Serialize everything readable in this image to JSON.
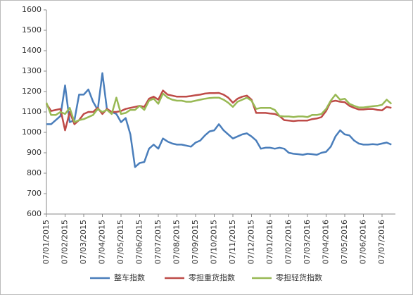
{
  "chart_data": {
    "type": "line",
    "categories": [
      "07/01/2015",
      null,
      null,
      null,
      "07/02/2015",
      null,
      null,
      null,
      "07/03/2015",
      null,
      null,
      null,
      "07/04/2015",
      null,
      null,
      null,
      "07/05/2015",
      null,
      null,
      null,
      "07/06/2015",
      null,
      null,
      null,
      "07/07/2015",
      null,
      null,
      null,
      "07/08/2015",
      null,
      null,
      null,
      "07/09/2015",
      null,
      null,
      null,
      "07/10/2015",
      null,
      null,
      null,
      "07/11/2015",
      null,
      null,
      null,
      "07/12/2015",
      null,
      null,
      null,
      "07/01/2016",
      null,
      null,
      null,
      "07/02/2016",
      null,
      null,
      null,
      "07/03/2016",
      null,
      null,
      null,
      "07/04/2016",
      null,
      null,
      null,
      "07/05/2016",
      null,
      null,
      null,
      "07/06/2016",
      null,
      null,
      null,
      "07/07/2016",
      null,
      null
    ],
    "series": [
      {
        "name": "整车指数",
        "color": "#4a7ebb",
        "values": [
          1040,
          1040,
          1060,
          1080,
          1230,
          1050,
          1060,
          1185,
          1185,
          1210,
          1150,
          1110,
          1290,
          1110,
          1100,
          1090,
          1050,
          1070,
          990,
          830,
          850,
          855,
          920,
          940,
          920,
          970,
          955,
          945,
          940,
          940,
          935,
          930,
          950,
          960,
          985,
          1005,
          1010,
          1040,
          1010,
          990,
          970,
          980,
          990,
          995,
          980,
          960,
          920,
          925,
          925,
          920,
          925,
          920,
          900,
          895,
          893,
          890,
          895,
          893,
          890,
          900,
          905,
          930,
          980,
          1010,
          990,
          985,
          960,
          945,
          940,
          940,
          942,
          940,
          945,
          950,
          940
        ]
      },
      {
        "name": "零担重货指数",
        "color": "#be4b48",
        "values": [
          1140,
          1105,
          1110,
          1115,
          1010,
          1100,
          1040,
          1060,
          1090,
          1100,
          1100,
          1120,
          1090,
          1115,
          1100,
          1100,
          1105,
          1115,
          1120,
          1125,
          1130,
          1125,
          1165,
          1175,
          1160,
          1205,
          1185,
          1180,
          1175,
          1175,
          1175,
          1178,
          1182,
          1185,
          1190,
          1192,
          1192,
          1193,
          1185,
          1170,
          1145,
          1165,
          1175,
          1180,
          1160,
          1095,
          1095,
          1095,
          1092,
          1090,
          1080,
          1060,
          1058,
          1055,
          1058,
          1058,
          1058,
          1065,
          1068,
          1075,
          1105,
          1150,
          1155,
          1150,
          1148,
          1130,
          1120,
          1112,
          1112,
          1115,
          1115,
          1110,
          1108,
          1125,
          1120
        ]
      },
      {
        "name": "零担轻货指数",
        "color": "#98b954",
        "values": [
          1145,
          1085,
          1085,
          1100,
          1090,
          1120,
          1050,
          1060,
          1065,
          1075,
          1085,
          1115,
          1100,
          1110,
          1090,
          1170,
          1090,
          1095,
          1110,
          1110,
          1130,
          1110,
          1155,
          1165,
          1140,
          1190,
          1170,
          1160,
          1155,
          1155,
          1150,
          1150,
          1155,
          1160,
          1165,
          1168,
          1170,
          1170,
          1160,
          1145,
          1125,
          1150,
          1160,
          1170,
          1155,
          1115,
          1120,
          1120,
          1120,
          1110,
          1080,
          1078,
          1078,
          1075,
          1078,
          1078,
          1075,
          1085,
          1085,
          1090,
          1115,
          1155,
          1185,
          1160,
          1165,
          1140,
          1130,
          1122,
          1122,
          1125,
          1128,
          1130,
          1135,
          1160,
          1140
        ]
      }
    ],
    "ylim": [
      600,
      1600
    ],
    "yticks": [
      600,
      700,
      800,
      900,
      1000,
      1100,
      1200,
      1300,
      1400,
      1500,
      1600
    ],
    "grid": false
  }
}
